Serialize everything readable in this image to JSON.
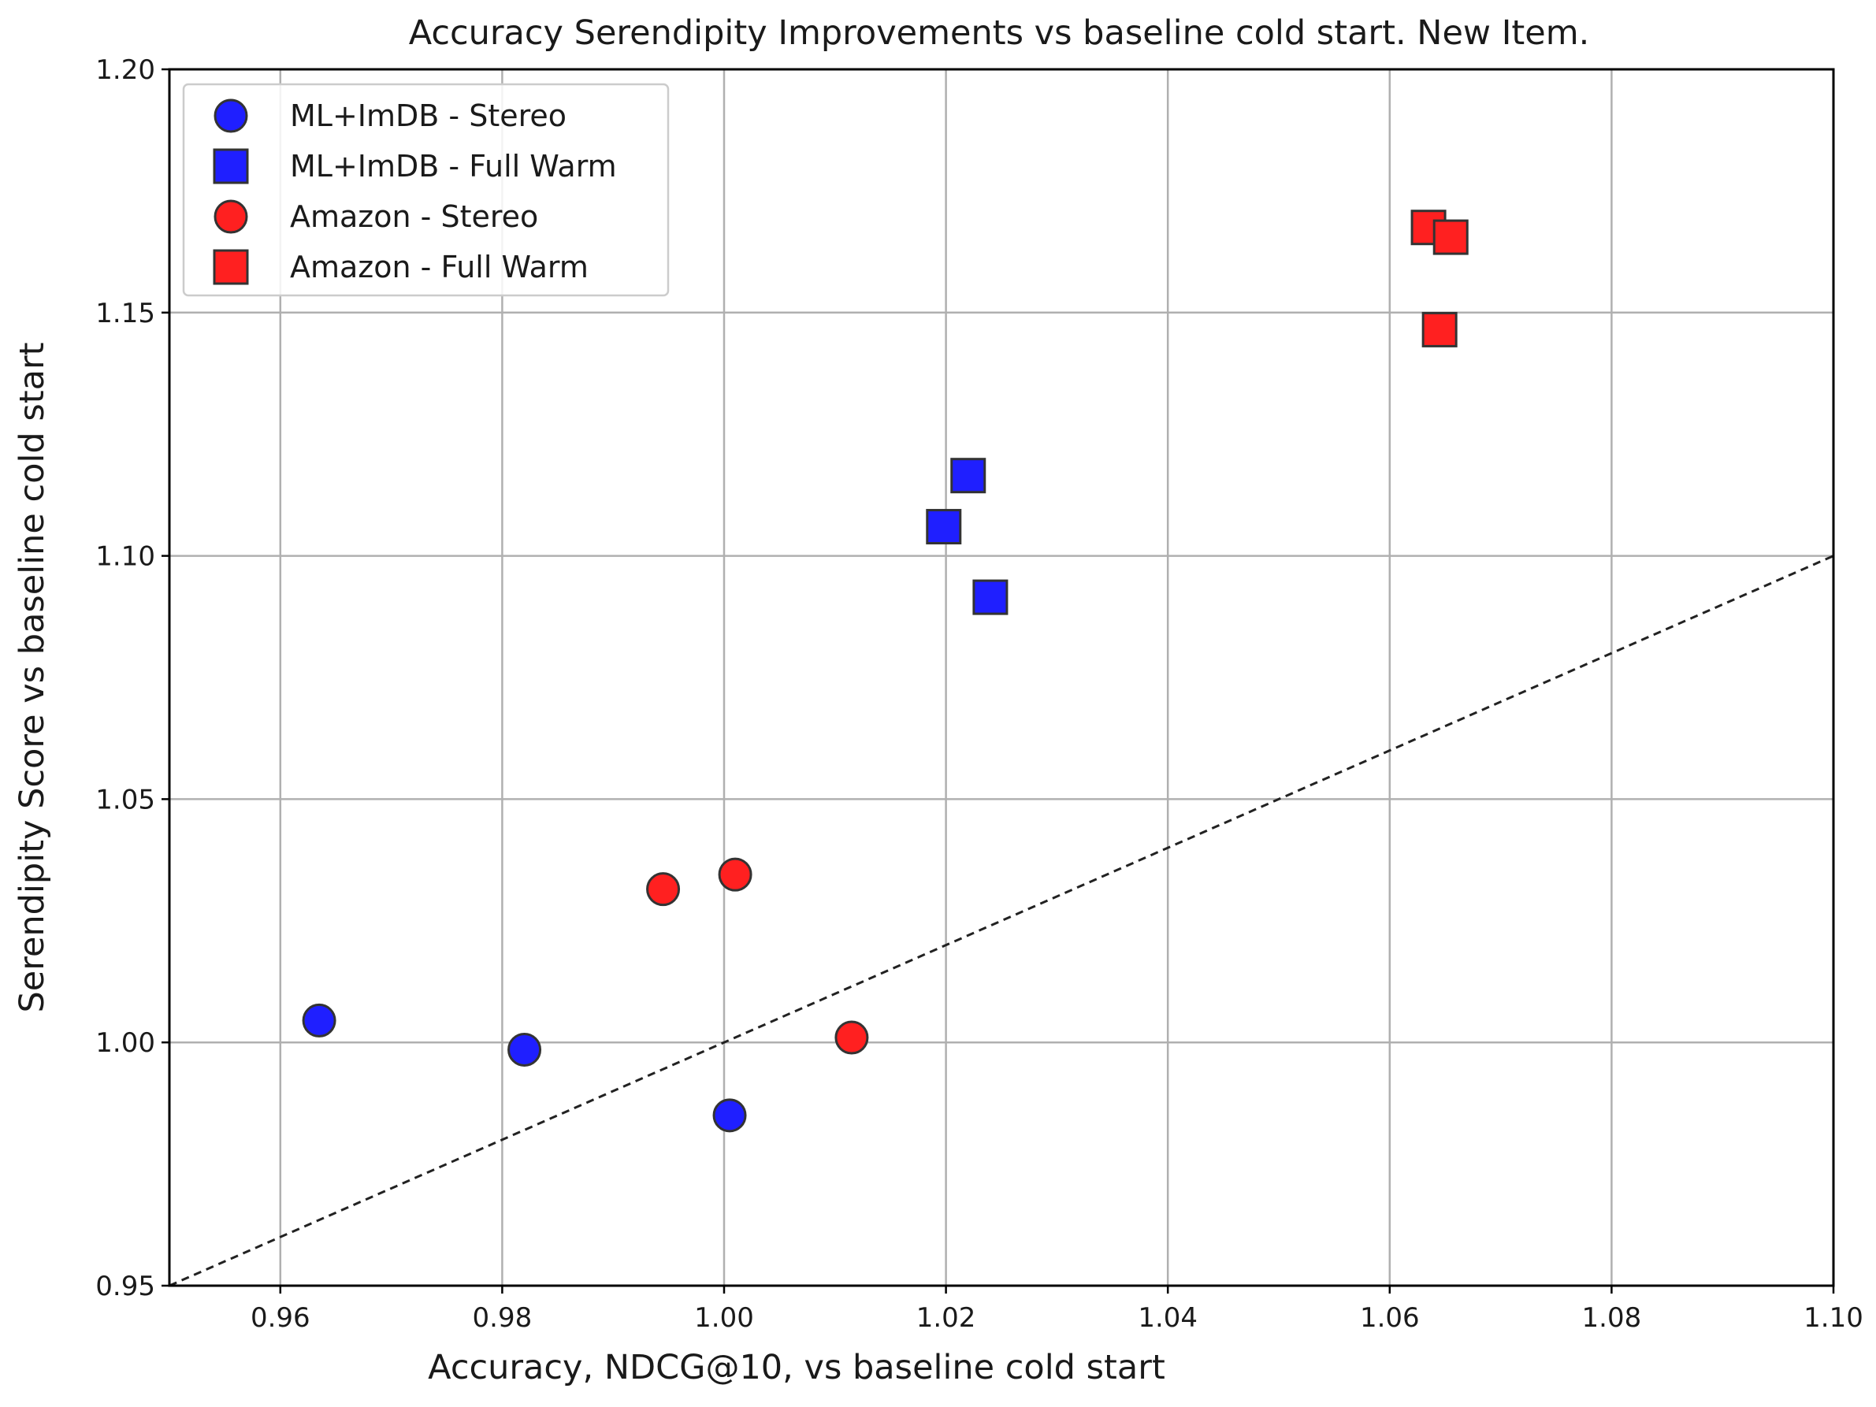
{
  "chart_data": {
    "type": "scatter",
    "title": "Accuracy Serendipity Improvements vs baseline cold start. New Item.",
    "xlabel": "Accuracy, NDCG@10, vs baseline cold start",
    "ylabel": "Serendipity Score vs baseline cold start",
    "xlim": [
      0.95,
      1.1
    ],
    "ylim": [
      0.95,
      1.2
    ],
    "xticks": [
      "0.96",
      "0.98",
      "1.00",
      "1.02",
      "1.04",
      "1.06",
      "1.08",
      "1.10"
    ],
    "yticks": [
      "0.95",
      "1.00",
      "1.05",
      "1.10",
      "1.15",
      "1.20"
    ],
    "grid": true,
    "legend_position": "top-left",
    "reference_line": {
      "style": "dashed",
      "color": "#222222",
      "points": [
        [
          0.95,
          0.95
        ],
        [
          1.1,
          1.1
        ]
      ]
    },
    "series": [
      {
        "name": "ML+ImDB - Stereo",
        "marker": "circle",
        "color": "#1f1fff",
        "points": [
          [
            0.9635,
            1.0045
          ],
          [
            0.982,
            0.9985
          ],
          [
            1.0005,
            0.985
          ]
        ]
      },
      {
        "name": "ML+ImDB - Full Warm",
        "marker": "square",
        "color": "#1f1fff",
        "points": [
          [
            1.022,
            1.1165
          ],
          [
            1.0198,
            1.106
          ],
          [
            1.024,
            1.0915
          ]
        ]
      },
      {
        "name": "Amazon - Stereo",
        "marker": "circle",
        "color": "#ff2020",
        "points": [
          [
            0.9945,
            1.0315
          ],
          [
            1.001,
            1.0345
          ],
          [
            1.0115,
            1.001
          ]
        ]
      },
      {
        "name": "Amazon - Full Warm",
        "marker": "square",
        "color": "#ff2020",
        "points": [
          [
            1.0635,
            1.1675
          ],
          [
            1.0655,
            1.1655
          ],
          [
            1.0645,
            1.1465
          ]
        ]
      }
    ]
  }
}
